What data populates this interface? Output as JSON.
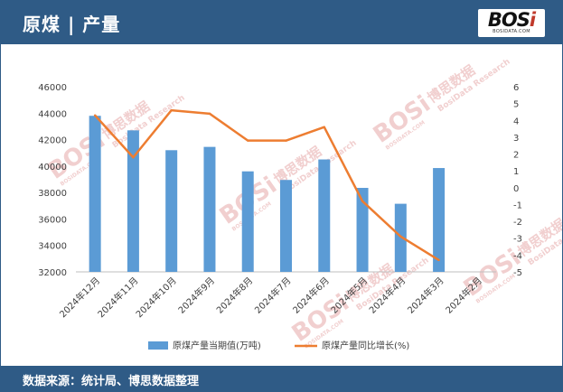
{
  "header": {
    "title": "原煤 | 产量"
  },
  "logo": {
    "mark": "BOSi",
    "sub": "BOSIDATA.COM"
  },
  "watermark": {
    "brand": "BOSi",
    "cn": "博思数据",
    "en": "BosiData Research",
    "url": "BOSIDATA.COM"
  },
  "footer": {
    "source": "数据来源：统计局、博思数据整理"
  },
  "chart_data": {
    "type": "bar+line",
    "categories": [
      "2024年12月",
      "2024年11月",
      "2024年10月",
      "2024年9月",
      "2024年8月",
      "2024年7月",
      "2024年6月",
      "2024年5月",
      "2024年4月",
      "2024年3月",
      "2024年2月"
    ],
    "series": [
      {
        "name": "原煤产量当期值(万吨)",
        "type": "bar",
        "axis": "left",
        "color": "#5b9bd5",
        "values": [
          43800,
          42700,
          41200,
          41450,
          39600,
          38950,
          40500,
          38350,
          37150,
          39850,
          null
        ]
      },
      {
        "name": "原煤产量同比增长(%)",
        "type": "line",
        "axis": "right",
        "color": "#ed7d31",
        "values": [
          4.3,
          1.8,
          4.6,
          4.4,
          2.8,
          2.8,
          3.6,
          -0.8,
          -2.9,
          -4.3,
          null
        ]
      }
    ],
    "y_left": {
      "min": 32000,
      "max": 46000,
      "step": 2000,
      "ticks": [
        "32000",
        "34000",
        "36000",
        "38000",
        "40000",
        "42000",
        "44000",
        "46000"
      ]
    },
    "y_right": {
      "min": -5,
      "max": 6,
      "step": 1,
      "ticks": [
        "-5",
        "-4",
        "-3",
        "-2",
        "-1",
        "0",
        "1",
        "2",
        "3",
        "4",
        "5",
        "6"
      ]
    },
    "grid": false,
    "legend": "bottom"
  }
}
